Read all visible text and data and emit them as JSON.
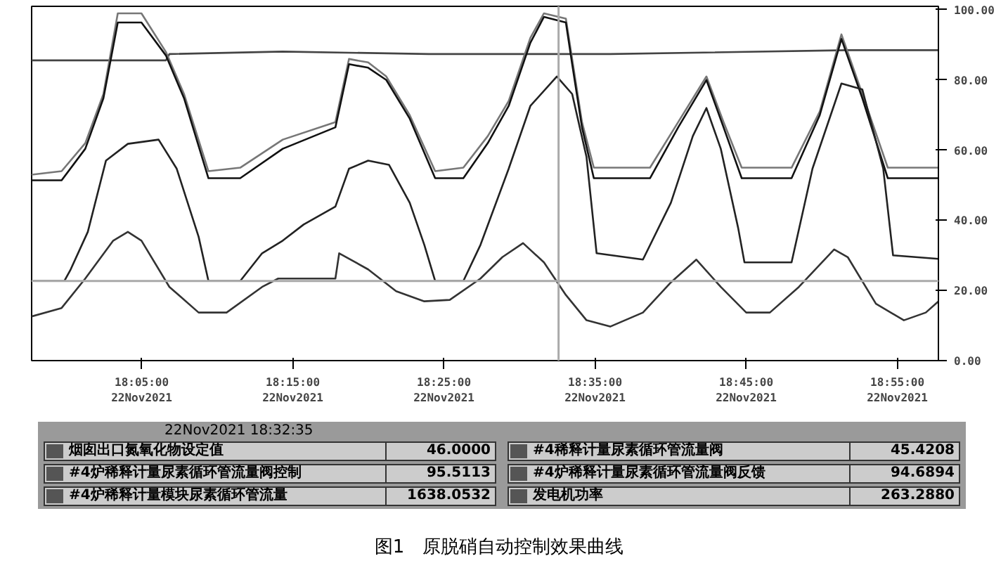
{
  "chart_data": {
    "type": "line",
    "title": "图1　原脱硝自动控制效果曲线",
    "xlim": [
      "2021-11-22T17:57:43",
      "2021-11-22T18:57:43"
    ],
    "ylim": [
      0,
      101
    ],
    "xticks": [
      {
        "value": "2021-11-22T18:05:00",
        "label": "18:05:00\n22Nov2021"
      },
      {
        "value": "2021-11-22T18:15:00",
        "label": "18:15:00\n22Nov2021"
      },
      {
        "value": "2021-11-22T18:25:00",
        "label": "18:25:00\n22Nov2021"
      },
      {
        "value": "2021-11-22T18:35:00",
        "label": "18:35:00\n22Nov2021"
      },
      {
        "value": "2021-11-22T18:45:00",
        "label": "18:45:00\n22Nov2021"
      },
      {
        "value": "2021-11-22T18:55:00",
        "label": "18:55:00\n22Nov2021"
      }
    ],
    "yticks": [
      {
        "value": 0,
        "label": "0.00"
      },
      {
        "value": 20,
        "label": "20.00"
      },
      {
        "value": 40,
        "label": "40.00"
      },
      {
        "value": 60,
        "label": "60.00"
      },
      {
        "value": 80,
        "label": "80.00"
      },
      {
        "value": 100,
        "label": "100.00"
      }
    ],
    "grid": false,
    "series": [
      {
        "color": "#444444",
        "x": [
          "2021-11-22T17:57:43",
          "2021-11-22T18:06:36",
          "2021-11-22T18:06:50",
          "2021-11-22T18:14:20",
          "2021-11-22T18:24:00",
          "2021-11-22T18:36:00",
          "2021-11-22T18:51:43",
          "2021-11-22T18:57:43"
        ],
        "values": [
          85.6,
          85.6,
          87.4,
          88.1,
          87.4,
          87.4,
          88.5,
          88.5
        ]
      },
      {
        "color": "#777777",
        "x": [
          "2021-11-22T17:57:43",
          "2021-11-22T17:59:42",
          "2021-11-22T18:01:16",
          "2021-11-22T18:02:28",
          "2021-11-22T18:03:25",
          "2021-11-22T18:04:59",
          "2021-11-22T18:06:36",
          "2021-11-22T18:07:48",
          "2021-11-22T18:09:25",
          "2021-11-22T18:11:31",
          "2021-11-22T18:14:20",
          "2021-11-22T18:17:49",
          "2021-11-22T18:18:43",
          "2021-11-22T18:19:59",
          "2021-11-22T18:21:11",
          "2021-11-22T18:22:44",
          "2021-11-22T18:24:25",
          "2021-11-22T18:26:17",
          "2021-11-22T18:27:54",
          "2021-11-22T18:29:17",
          "2021-11-22T18:30:43",
          "2021-11-22T18:31:37",
          "2021-11-22T18:33:04",
          "2021-11-22T18:33:29",
          "2021-11-22T18:34:08",
          "2021-11-22T18:34:55",
          "2021-11-22T18:38:38",
          "2021-11-22T18:40:30",
          "2021-11-22T18:42:22",
          "2021-11-22T18:43:30",
          "2021-11-22T18:44:42",
          "2021-11-22T18:48:00",
          "2021-11-22T18:49:52",
          "2021-11-22T18:51:18",
          "2021-11-22T18:52:41",
          "2021-11-22T18:54:22",
          "2021-11-22T18:57:43"
        ],
        "values": [
          53,
          54,
          62,
          76,
          99,
          99,
          88,
          76,
          54,
          55,
          63,
          68,
          86,
          85,
          81,
          70,
          54,
          55,
          64,
          74,
          92,
          99,
          97.5,
          86,
          68,
          55,
          55,
          68,
          81,
          68,
          55,
          55,
          71,
          93,
          76,
          55,
          55
        ]
      },
      {
        "color": "#111111",
        "x": [
          "2021-11-22T17:57:43",
          "2021-11-22T17:59:42",
          "2021-11-22T18:01:16",
          "2021-11-22T18:02:28",
          "2021-11-22T18:03:25",
          "2021-11-22T18:04:59",
          "2021-11-22T18:06:36",
          "2021-11-22T18:07:48",
          "2021-11-22T18:09:25",
          "2021-11-22T18:11:31",
          "2021-11-22T18:14:20",
          "2021-11-22T18:17:49",
          "2021-11-22T18:18:43",
          "2021-11-22T18:19:59",
          "2021-11-22T18:21:11",
          "2021-11-22T18:22:44",
          "2021-11-22T18:24:25",
          "2021-11-22T18:26:17",
          "2021-11-22T18:27:54",
          "2021-11-22T18:29:17",
          "2021-11-22T18:30:43",
          "2021-11-22T18:31:37",
          "2021-11-22T18:33:04",
          "2021-11-22T18:33:29",
          "2021-11-22T18:34:08",
          "2021-11-22T18:34:55",
          "2021-11-22T18:38:38",
          "2021-11-22T18:40:30",
          "2021-11-22T18:42:22",
          "2021-11-22T18:43:30",
          "2021-11-22T18:44:42",
          "2021-11-22T18:48:00",
          "2021-11-22T18:49:52",
          "2021-11-22T18:51:18",
          "2021-11-22T18:52:41",
          "2021-11-22T18:54:22",
          "2021-11-22T18:57:43"
        ],
        "values": [
          51.4,
          51.4,
          60.4,
          74.8,
          96.4,
          96.4,
          87,
          74.8,
          52,
          52,
          60.4,
          66.5,
          84.5,
          83.5,
          80,
          69,
          52,
          52,
          62,
          72.6,
          90.6,
          98,
          96.4,
          84.5,
          66.5,
          52,
          52,
          66.5,
          80,
          66.5,
          52,
          52,
          70,
          91.7,
          74.8,
          52,
          52
        ]
      },
      {
        "color": "#222222",
        "x": [
          "2021-11-22T17:57:43",
          "2021-11-22T17:59:53",
          "2021-11-22T18:00:18",
          "2021-11-22T18:01:26",
          "2021-11-22T18:02:38",
          "2021-11-22T18:04:05",
          "2021-11-22T18:06:07",
          "2021-11-22T18:07:19",
          "2021-11-22T18:08:46",
          "2021-11-22T18:09:25",
          "2021-11-22T18:11:31",
          "2021-11-22T18:12:58",
          "2021-11-22T18:14:20",
          "2021-11-22T18:15:43",
          "2021-11-22T18:17:49",
          "2021-11-22T18:18:43",
          "2021-11-22T18:19:59",
          "2021-11-22T18:21:22",
          "2021-11-22T18:22:44",
          "2021-11-22T18:23:42",
          "2021-11-22T18:24:25",
          "2021-11-22T18:26:17",
          "2021-11-22T18:27:25",
          "2021-11-22T18:29:17",
          "2021-11-22T18:30:43",
          "2021-11-22T18:32:28",
          "2021-11-22T18:33:29",
          "2021-11-22T18:34:26",
          "2021-11-22T18:35:06",
          "2021-11-22T18:38:10",
          "2021-11-22T18:40:01",
          "2021-11-22T18:41:28",
          "2021-11-22T18:42:22",
          "2021-11-22T18:43:19",
          "2021-11-22T18:44:28",
          "2021-11-22T18:44:53",
          "2021-11-22T18:48:00",
          "2021-11-22T18:49:23",
          "2021-11-22T18:51:18",
          "2021-11-22T18:52:41",
          "2021-11-22T18:54:04",
          "2021-11-22T18:54:43",
          "2021-11-22T18:57:43"
        ],
        "values": [
          22.7,
          22.7,
          26,
          36.7,
          57,
          61.8,
          63,
          54.7,
          35.3,
          22.7,
          22.7,
          30.6,
          34.2,
          38.8,
          43.9,
          54.7,
          57,
          55.8,
          45,
          33,
          22.7,
          22.7,
          33,
          54.7,
          72.6,
          81,
          76,
          58,
          30.6,
          28.8,
          45,
          64,
          72,
          60.4,
          37.8,
          28,
          28,
          54.7,
          79,
          77.3,
          54.7,
          30,
          29
        ]
      },
      {
        "color": "#333333",
        "x": [
          "2021-11-22T17:57:43",
          "2021-11-22T17:59:42",
          "2021-11-22T18:01:16",
          "2021-11-22T18:03:07",
          "2021-11-22T18:04:05",
          "2021-11-22T18:04:59",
          "2021-11-22T18:06:50",
          "2021-11-22T18:08:46",
          "2021-11-22T18:10:37",
          "2021-11-22T18:12:58",
          "2021-11-22T18:14:02",
          "2021-11-22T18:17:49",
          "2021-11-22T18:18:04",
          "2021-11-22T18:19:59",
          "2021-11-22T18:21:50",
          "2021-11-22T18:23:42",
          "2021-11-22T18:25:23",
          "2021-11-22T18:27:25",
          "2021-11-22T18:28:52",
          "2021-11-22T18:30:14",
          "2021-11-22T18:31:37",
          "2021-11-22T18:33:04",
          "2021-11-22T18:34:26",
          "2021-11-22T18:36:00",
          "2021-11-22T18:38:10",
          "2021-11-22T18:40:01",
          "2021-11-22T18:41:42",
          "2021-11-22T18:43:19",
          "2021-11-22T18:45:00",
          "2021-11-22T18:46:34",
          "2021-11-22T18:48:29",
          "2021-11-22T18:50:49",
          "2021-11-22T18:51:43",
          "2021-11-22T18:53:35",
          "2021-11-22T18:55:26",
          "2021-11-22T18:56:53",
          "2021-11-22T18:57:43"
        ],
        "values": [
          12.6,
          15,
          23.4,
          34.2,
          36.7,
          34.2,
          21,
          13.7,
          13.7,
          21,
          23.4,
          23.4,
          30.6,
          26,
          19.8,
          16.9,
          17.3,
          23.4,
          29.5,
          33.5,
          28,
          18.7,
          11.5,
          9.7,
          13.7,
          22.3,
          28.8,
          21,
          13.7,
          13.7,
          21,
          31.7,
          29.5,
          16.2,
          11.5,
          13.7,
          16.9
        ]
      }
    ],
    "ref_lines": [
      {
        "axis": "y",
        "value": 22.7,
        "color": "#aaaaaa"
      },
      {
        "axis": "x",
        "value": "2021-11-22T18:32:35",
        "color": "#aaaaaa"
      }
    ],
    "annotations": [
      "22Nov2021 18:32:35",
      "烟囱出口氮氧化物设定值",
      "46.0000",
      "#4稀释计量尿素循环管流量阀",
      "45.4208",
      "#4炉稀释计量尿素循环管流量阀控制",
      "95.5113",
      "#4炉稀释计量尿素循环管流量阀反馈",
      "94.6894",
      "#4炉稀释计量模块尿素循环管流量",
      "1638.0532",
      "发电机功率",
      "263.2880"
    ]
  }
}
